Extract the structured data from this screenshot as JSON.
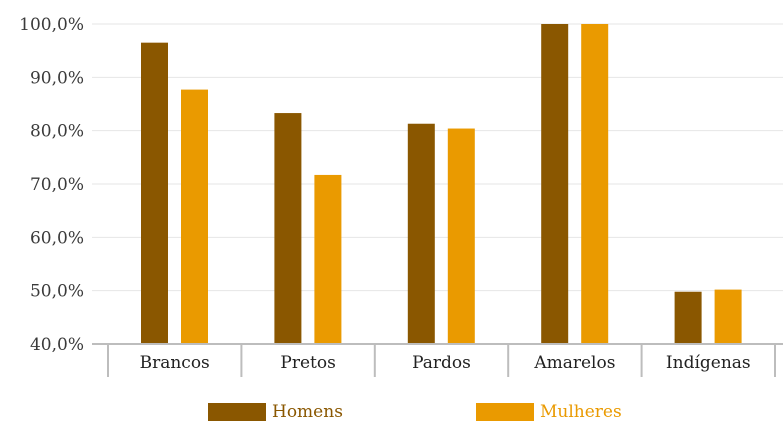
{
  "chart_data": {
    "type": "bar",
    "categories": [
      "Brancos",
      "Pretos",
      "Pardos",
      "Amarelos",
      "Indígenas"
    ],
    "series": [
      {
        "name": "Homens",
        "values": [
          96.5,
          83.3,
          81.3,
          100.0,
          49.8
        ]
      },
      {
        "name": "Mulheres",
        "values": [
          87.7,
          71.7,
          80.4,
          100.0,
          50.2
        ]
      }
    ],
    "title": "",
    "xlabel": "",
    "ylabel": "",
    "ylim": [
      40,
      100
    ],
    "yticks": [
      "40,0%",
      "50,0%",
      "60,0%",
      "70,0%",
      "80,0%",
      "90,0%",
      "100,0%"
    ],
    "grid": true,
    "legend_position": "bottom",
    "colors": {
      "Homens": "#8a5700",
      "Mulheres": "#ea9a00"
    }
  }
}
